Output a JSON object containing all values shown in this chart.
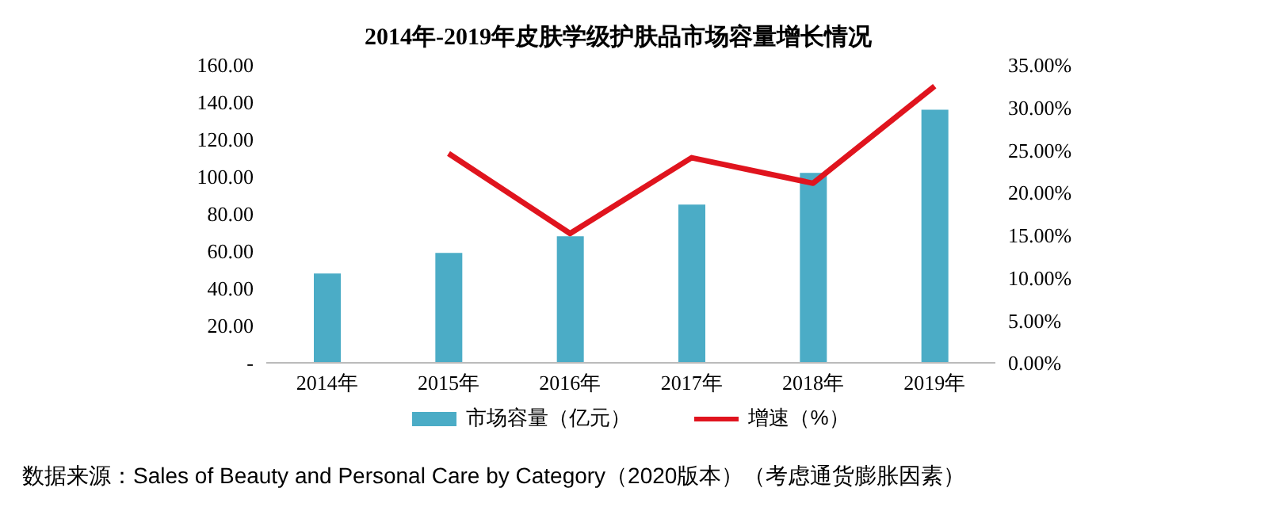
{
  "chart_data": {
    "type": "bar",
    "title": "2014年-2019年皮肤学级护肤品市场容量增长情况",
    "categories": [
      "2014年",
      "2015年",
      "2016年",
      "2017年",
      "2018年",
      "2019年"
    ],
    "series": [
      {
        "name": "市场容量（亿元）",
        "color": "#4bacc6",
        "values": [
          48,
          59,
          68,
          85,
          102,
          136
        ]
      },
      {
        "name": "增速（%）",
        "type": "line",
        "axis": "y2",
        "color": "#e0141e",
        "values": [
          null,
          24.6,
          15.2,
          24.1,
          21.1,
          32.5
        ]
      }
    ],
    "ylim": [
      0,
      160
    ],
    "yticks": [
      {
        "value": 0,
        "label": "-"
      },
      {
        "value": 20,
        "label": "20.00"
      },
      {
        "value": 40,
        "label": "40.00"
      },
      {
        "value": 60,
        "label": "60.00"
      },
      {
        "value": 80,
        "label": "80.00"
      },
      {
        "value": 100,
        "label": "100.00"
      },
      {
        "value": 120,
        "label": "120.00"
      },
      {
        "value": 140,
        "label": "140.00"
      },
      {
        "value": 160,
        "label": "160.00"
      }
    ],
    "y2lim": [
      0,
      35
    ],
    "y2ticks": [
      {
        "value": 0,
        "label": "0.00%"
      },
      {
        "value": 5,
        "label": "5.00%"
      },
      {
        "value": 10,
        "label": "10.00%"
      },
      {
        "value": 15,
        "label": "15.00%"
      },
      {
        "value": 20,
        "label": "20.00%"
      },
      {
        "value": 25,
        "label": "25.00%"
      },
      {
        "value": 30,
        "label": "30.00%"
      },
      {
        "value": 35,
        "label": "35.00%"
      }
    ],
    "legend": "bottom",
    "marker": "none",
    "line_style": "solid",
    "grid": false,
    "annotations": [
      "数据来源：Sales of Beauty and Personal Care by Category（2020版本）（考虑通货膨胀因素）"
    ]
  }
}
